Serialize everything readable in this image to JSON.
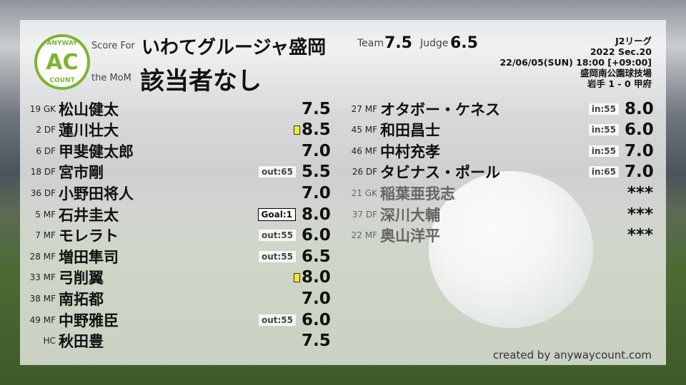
{
  "header": {
    "score_for_label": "Score For",
    "team_name": "いわてグルージャ盛岡",
    "mom_label": "the MoM",
    "mom_name": "該当者なし",
    "team_label": "Team",
    "team_score": "7.5",
    "judge_label": "Judge",
    "judge_score": "6.5"
  },
  "logo": {
    "top": "ANYWAY",
    "center": "AC",
    "bottom": "COUNT",
    "color": "#7bb52e"
  },
  "match": {
    "league": "J2リーグ",
    "section": "2022 Sec.20",
    "datetime": "22/06/05(SUN) 18:00 [+09:00]",
    "venue": "盛岡南公園球技場",
    "result": "岩手 1 - 0 甲府"
  },
  "left_players": [
    {
      "num": "19",
      "pos": "GK",
      "name": "松山健太",
      "tag": "",
      "card": false,
      "score": "7.5"
    },
    {
      "num": "2",
      "pos": "DF",
      "name": "蓮川壮大",
      "tag": "",
      "card": true,
      "score": "8.5"
    },
    {
      "num": "6",
      "pos": "DF",
      "name": "甲斐健太郎",
      "tag": "",
      "card": false,
      "score": "7.0"
    },
    {
      "num": "18",
      "pos": "DF",
      "name": "宮市剛",
      "tag": "out:65",
      "card": false,
      "score": "5.5"
    },
    {
      "num": "36",
      "pos": "DF",
      "name": "小野田将人",
      "tag": "",
      "card": false,
      "score": "7.0"
    },
    {
      "num": "5",
      "pos": "MF",
      "name": "石井圭太",
      "tag": "Goal:1",
      "card": false,
      "score": "8.0"
    },
    {
      "num": "7",
      "pos": "MF",
      "name": "モレラト",
      "tag": "out:55",
      "card": false,
      "score": "6.0"
    },
    {
      "num": "28",
      "pos": "MF",
      "name": "増田隼司",
      "tag": "out:55",
      "card": false,
      "score": "6.5"
    },
    {
      "num": "33",
      "pos": "MF",
      "name": "弓削翼",
      "tag": "",
      "card": true,
      "score": "8.0"
    },
    {
      "num": "38",
      "pos": "MF",
      "name": "南拓都",
      "tag": "",
      "card": false,
      "score": "7.0"
    },
    {
      "num": "49",
      "pos": "MF",
      "name": "中野雅臣",
      "tag": "out:55",
      "card": false,
      "score": "6.0"
    },
    {
      "num": "",
      "pos": "HC",
      "name": "秋田豊",
      "tag": "",
      "card": false,
      "score": "7.5"
    }
  ],
  "right_players": [
    {
      "num": "27",
      "pos": "MF",
      "name": "オタボー・ケネス",
      "tag": "in:55",
      "score": "8.0"
    },
    {
      "num": "45",
      "pos": "MF",
      "name": "和田昌士",
      "tag": "in:55",
      "score": "6.0"
    },
    {
      "num": "46",
      "pos": "MF",
      "name": "中村充孝",
      "tag": "in:55",
      "score": "7.0"
    },
    {
      "num": "26",
      "pos": "DF",
      "name": "タビナス・ポール",
      "tag": "in:65",
      "score": "7.0"
    },
    {
      "num": "21",
      "pos": "GK",
      "name": "稲葉亜我志",
      "tag": "",
      "score": "***"
    },
    {
      "num": "37",
      "pos": "DF",
      "name": "深川大輔",
      "tag": "",
      "score": "***"
    },
    {
      "num": "22",
      "pos": "MF",
      "name": "奥山洋平",
      "tag": "",
      "score": "***"
    }
  ],
  "footer": {
    "credit": "created by anywaycount.com"
  }
}
